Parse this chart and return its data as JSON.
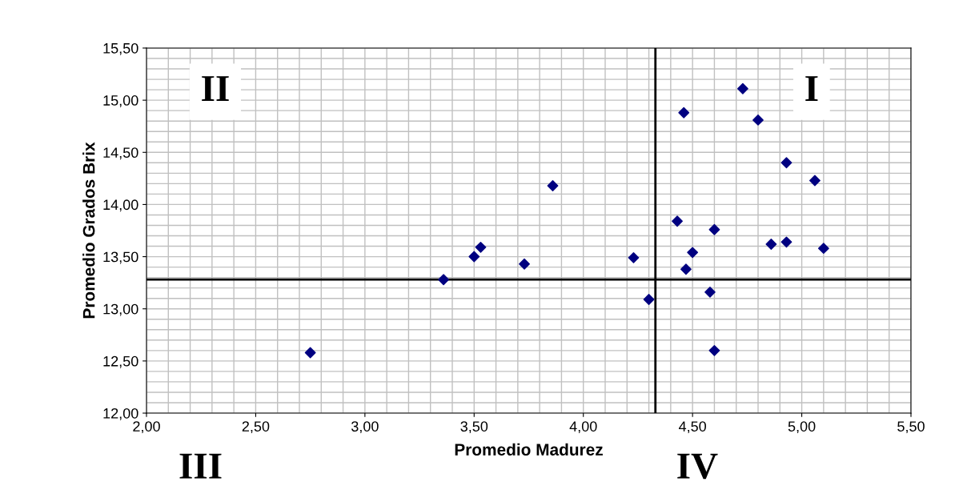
{
  "chart_data": {
    "type": "scatter",
    "xlabel": "Promedio Madurez",
    "ylabel": "Promedio Grados Brix",
    "series": [
      {
        "color": "#000080",
        "x": [
          2.75,
          3.36,
          3.5,
          3.53,
          3.73,
          3.86,
          4.23,
          4.3,
          4.43,
          4.46,
          4.47,
          4.5,
          4.58,
          4.6,
          4.6,
          4.73,
          4.8,
          4.86,
          4.93,
          4.93,
          5.06,
          5.1
        ],
        "values": [
          12.58,
          13.28,
          13.5,
          13.59,
          13.43,
          14.18,
          13.49,
          13.09,
          13.84,
          14.88,
          13.38,
          13.54,
          13.16,
          13.76,
          12.6,
          15.11,
          14.81,
          13.62,
          14.4,
          13.64,
          14.23,
          13.58
        ]
      }
    ],
    "xlim": [
      2.0,
      5.5
    ],
    "xticks": [
      {
        "value": 2.0,
        "label": "2,00"
      },
      {
        "value": 2.5,
        "label": "2,50"
      },
      {
        "value": 3.0,
        "label": "3,00"
      },
      {
        "value": 3.5,
        "label": "3,50"
      },
      {
        "value": 4.0,
        "label": "4,00"
      },
      {
        "value": 4.5,
        "label": "4,50"
      },
      {
        "value": 5.0,
        "label": "5,00"
      },
      {
        "value": 5.5,
        "label": "5,50"
      }
    ],
    "ylim": [
      12.0,
      15.5
    ],
    "yticks": [
      {
        "value": 12.0,
        "label": "12,00"
      },
      {
        "value": 12.5,
        "label": "12,50"
      },
      {
        "value": 13.0,
        "label": "13,00"
      },
      {
        "value": 13.5,
        "label": "13,50"
      },
      {
        "value": 14.0,
        "label": "14,00"
      },
      {
        "value": 14.5,
        "label": "14,50"
      },
      {
        "value": 15.0,
        "label": "15,00"
      },
      {
        "value": 15.5,
        "label": "15,50"
      }
    ],
    "ref_lines": [
      {
        "axis": "x",
        "value": 4.33,
        "color": "#000000"
      },
      {
        "axis": "y",
        "value": 13.28,
        "color": "#000000"
      }
    ],
    "annotations": [
      "I",
      "II",
      "III",
      "IV"
    ],
    "grid": true,
    "marker": "diamond",
    "legend": false
  }
}
